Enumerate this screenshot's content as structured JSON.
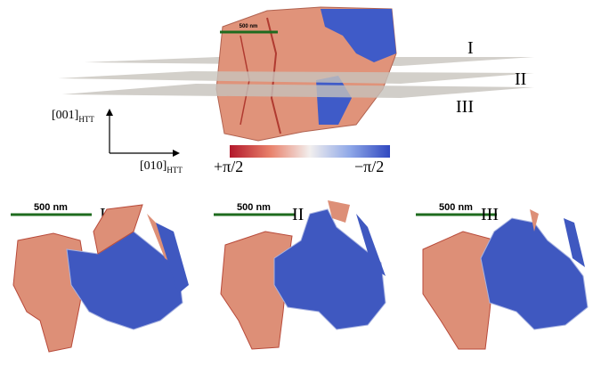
{
  "top": {
    "scale_bar": "500 nm",
    "planes": [
      "I",
      "II",
      "III"
    ],
    "axes": {
      "vertical": {
        "text": "[001]",
        "sub": "HTT"
      },
      "horizontal": {
        "text": "[010]",
        "sub": "HTT"
      }
    },
    "colorbar": {
      "left_label": "+π/2",
      "right_label": "−π/2"
    }
  },
  "panels": [
    {
      "label": "I",
      "scale_bar": "500 nm"
    },
    {
      "label": "II",
      "scale_bar": "500 nm"
    },
    {
      "label": "III",
      "scale_bar": "500 nm"
    }
  ]
}
